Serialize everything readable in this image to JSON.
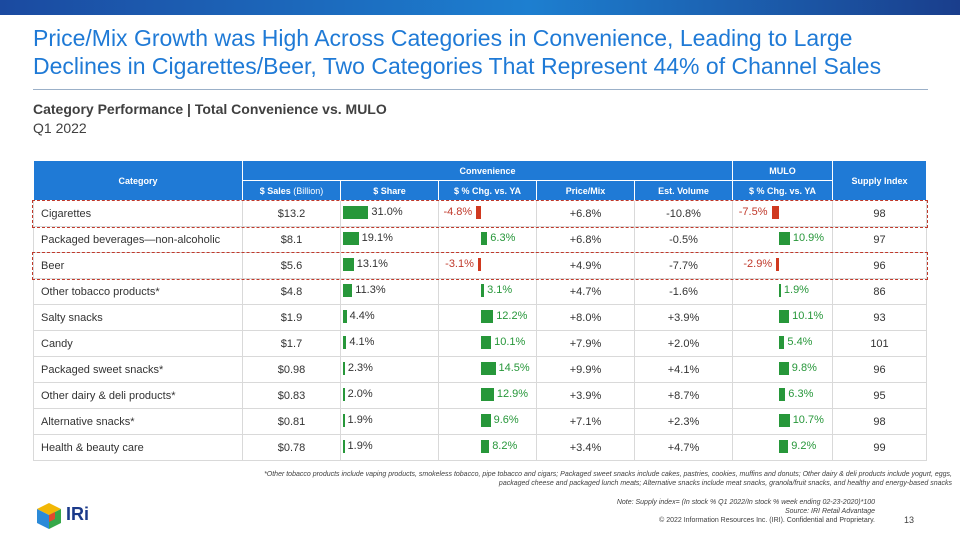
{
  "title_line1": "Price/Mix Growth was High Across Categories in Convenience, Leading to Large",
  "title_line2": "Declines in Cigarettes/Beer, Two Categories That Represent 44% of Channel Sales",
  "subtitle": "Category Performance | Total Convenience vs. MULO",
  "period": "Q1 2022",
  "table": {
    "header": {
      "category": "Category",
      "convenience": "Convenience",
      "mulo": "MULO",
      "supply_index": "Supply Index",
      "sales": "$ Sales",
      "sales_unit": "(Billion)",
      "share": "$ Share",
      "pct_chg": "$ % Chg. vs. YA",
      "price_mix": "Price/Mix",
      "est_volume": "Est. Volume",
      "mulo_pct_chg": "$ % Chg. vs. YA"
    },
    "rows": [
      {
        "category": "Cigarettes",
        "sales": "$13.2",
        "share": "31.0%",
        "share_val": 31.0,
        "conv_chg": "-4.8%",
        "conv_chg_val": -4.8,
        "price_mix": "+6.8%",
        "est_volume": "-10.8%",
        "mulo_chg": "-7.5%",
        "mulo_chg_val": -7.5,
        "supply_index": "98",
        "highlight": true
      },
      {
        "category": "Packaged beverages—non-alcoholic",
        "sales": "$8.1",
        "share": "19.1%",
        "share_val": 19.1,
        "conv_chg": "6.3%",
        "conv_chg_val": 6.3,
        "price_mix": "+6.8%",
        "est_volume": "-0.5%",
        "mulo_chg": "10.9%",
        "mulo_chg_val": 10.9,
        "supply_index": "97",
        "highlight": false
      },
      {
        "category": "Beer",
        "sales": "$5.6",
        "share": "13.1%",
        "share_val": 13.1,
        "conv_chg": "-3.1%",
        "conv_chg_val": -3.1,
        "price_mix": "+4.9%",
        "est_volume": "-7.7%",
        "mulo_chg": "-2.9%",
        "mulo_chg_val": -2.9,
        "supply_index": "96",
        "highlight": true
      },
      {
        "category": "Other tobacco products*",
        "sales": "$4.8",
        "share": "11.3%",
        "share_val": 11.3,
        "conv_chg": "3.1%",
        "conv_chg_val": 3.1,
        "price_mix": "+4.7%",
        "est_volume": "-1.6%",
        "mulo_chg": "1.9%",
        "mulo_chg_val": 1.9,
        "supply_index": "86",
        "highlight": false
      },
      {
        "category": "Salty snacks",
        "sales": "$1.9",
        "share": "4.4%",
        "share_val": 4.4,
        "conv_chg": "12.2%",
        "conv_chg_val": 12.2,
        "price_mix": "+8.0%",
        "est_volume": "+3.9%",
        "mulo_chg": "10.1%",
        "mulo_chg_val": 10.1,
        "supply_index": "93",
        "highlight": false
      },
      {
        "category": "Candy",
        "sales": "$1.7",
        "share": "4.1%",
        "share_val": 4.1,
        "conv_chg": "10.1%",
        "conv_chg_val": 10.1,
        "price_mix": "+7.9%",
        "est_volume": "+2.0%",
        "mulo_chg": "5.4%",
        "mulo_chg_val": 5.4,
        "supply_index": "101",
        "highlight": false
      },
      {
        "category": "Packaged sweet snacks*",
        "sales": "$0.98",
        "share": "2.3%",
        "share_val": 2.3,
        "conv_chg": "14.5%",
        "conv_chg_val": 14.5,
        "price_mix": "+9.9%",
        "est_volume": "+4.1%",
        "mulo_chg": "9.8%",
        "mulo_chg_val": 9.8,
        "supply_index": "96",
        "highlight": false
      },
      {
        "category": "Other dairy & deli products*",
        "sales": "$0.83",
        "share": "2.0%",
        "share_val": 2.0,
        "conv_chg": "12.9%",
        "conv_chg_val": 12.9,
        "price_mix": "+3.9%",
        "est_volume": "+8.7%",
        "mulo_chg": "6.3%",
        "mulo_chg_val": 6.3,
        "supply_index": "95",
        "highlight": false
      },
      {
        "category": "Alternative snacks*",
        "sales": "$0.81",
        "share": "1.9%",
        "share_val": 1.9,
        "conv_chg": "9.6%",
        "conv_chg_val": 9.6,
        "price_mix": "+7.1%",
        "est_volume": "+2.3%",
        "mulo_chg": "10.7%",
        "mulo_chg_val": 10.7,
        "supply_index": "98",
        "highlight": false
      },
      {
        "category": "Health & beauty care",
        "sales": "$0.78",
        "share": "1.9%",
        "share_val": 1.9,
        "conv_chg": "8.2%",
        "conv_chg_val": 8.2,
        "price_mix": "+3.4%",
        "est_volume": "+4.7%",
        "mulo_chg": "9.2%",
        "mulo_chg_val": 9.2,
        "supply_index": "99",
        "highlight": false
      }
    ]
  },
  "footnote": "*Other tobacco products include vaping products, smokeless tobacco, pipe tobacco and cigars; Packaged sweet snacks include cakes, pastries, cookies, muffins and donuts; Other dairy & deli products include yogurt, eggs, packaged cheese and packaged lunch meats; Alternative snacks include meat snacks, granola/fruit snacks, and healthy and energy-based snacks",
  "note": "Note: Supply index= (In stock % Q1 2022/In stock % week ending 02-23-2020)*100",
  "source": "Source: IRI Retail Advantage",
  "copyright": "© 2022 Information Resources Inc. (IRI). Confidential and Proprietary.",
  "page_number": "13",
  "logo_text": "IRi",
  "colors": {
    "accent": "#1f7ad6",
    "positive": "#27973a",
    "negative": "#d0391f",
    "highlight_border": "#c0392b"
  }
}
